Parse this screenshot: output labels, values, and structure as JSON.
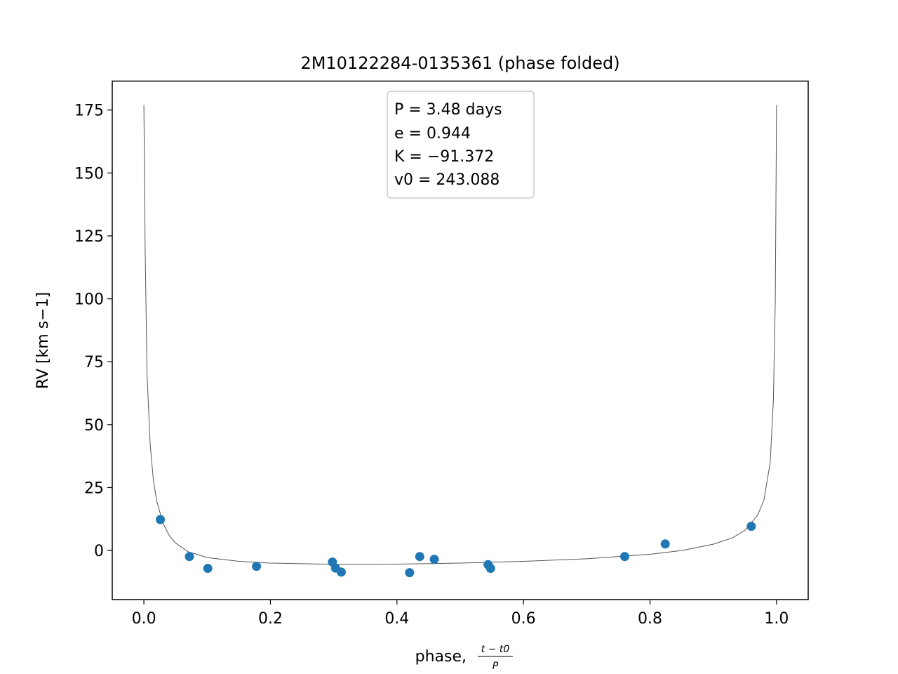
{
  "chart_data": {
    "type": "scatter",
    "title": "2M10122284-0135361 (phase folded)",
    "xlabel": {
      "prefix": "phase, ",
      "fraction_numerator": "t − t0",
      "fraction_denominator": "P"
    },
    "ylabel": "RV [km s−1]",
    "xlim": [
      -0.05,
      1.05
    ],
    "ylim": [
      -19.5,
      186.5
    ],
    "xticks": [
      0.0,
      0.2,
      0.4,
      0.6,
      0.8,
      1.0
    ],
    "xtick_labels": [
      "0.0",
      "0.2",
      "0.4",
      "0.6",
      "0.8",
      "1.0"
    ],
    "yticks": [
      0,
      25,
      50,
      75,
      100,
      125,
      150,
      175
    ],
    "ytick_labels": [
      "0",
      "25",
      "50",
      "75",
      "100",
      "125",
      "150",
      "175"
    ],
    "grid": false,
    "annotation": {
      "lines": [
        "P = 3.48 days",
        "e = 0.944",
        "K = −91.372",
        "v0 = 243.088"
      ],
      "placement": "top-center"
    },
    "series": [
      {
        "kind": "points",
        "color": "#1f77b4",
        "x": [
          0.026,
          0.072,
          0.101,
          0.178,
          0.298,
          0.303,
          0.312,
          0.42,
          0.436,
          0.459,
          0.544,
          0.548,
          0.76,
          0.824,
          0.96
        ],
        "y": [
          12.3,
          -2.4,
          -7.1,
          -6.3,
          -4.6,
          -7.0,
          -8.6,
          -8.8,
          -2.4,
          -3.5,
          -5.6,
          -7.1,
          -2.4,
          2.6,
          9.6
        ]
      },
      {
        "kind": "model-curve",
        "color": "#555555",
        "x": [
          0.0,
          0.002,
          0.005,
          0.01,
          0.015,
          0.02,
          0.03,
          0.04,
          0.05,
          0.07,
          0.1,
          0.15,
          0.2,
          0.3,
          0.35,
          0.4,
          0.5,
          0.6,
          0.7,
          0.8,
          0.85,
          0.9,
          0.93,
          0.95,
          0.97,
          0.98,
          0.99,
          0.995,
          0.998,
          1.0
        ],
        "y": [
          177,
          120,
          70,
          42,
          28,
          20,
          11,
          6,
          3,
          -0.5,
          -2.8,
          -4.3,
          -5.0,
          -5.5,
          -5.5,
          -5.4,
          -5.0,
          -4.3,
          -3.3,
          -1.5,
          0.0,
          2.5,
          5.0,
          8.0,
          14.0,
          20.0,
          35.0,
          60.0,
          100.0,
          177.0
        ]
      }
    ]
  }
}
